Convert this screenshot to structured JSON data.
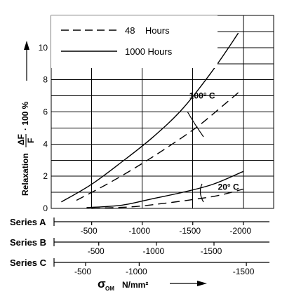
{
  "chart_data": {
    "type": "line",
    "ylabel": "Relaxation",
    "ylabel_formula": {
      "numerator": "ΔF",
      "denominator": "F",
      "suffix": "· 100 %"
    },
    "xlabel": {
      "symbol": "σ",
      "subscript": "OM",
      "unit": "N/mm²"
    },
    "ylim": [
      0,
      12
    ],
    "yticks": [
      0,
      2,
      4,
      6,
      8,
      10
    ],
    "ytick_labels": [
      "0",
      "2",
      "4",
      "6",
      "8",
      "10"
    ],
    "x_primary": "Series A",
    "xlim_series_a": [
      -100,
      -2300
    ],
    "grid": true,
    "legend_position": "top-left",
    "legend": [
      {
        "label": "48    Hours",
        "style": "dashed"
      },
      {
        "label": "1000 Hours",
        "style": "solid"
      }
    ],
    "annotations": [
      {
        "text": "100° C",
        "x": -1500,
        "y": 7.0
      },
      {
        "text": "20° C",
        "x": -1700,
        "y": 1.25
      }
    ],
    "secondary_axes": [
      {
        "name": "Series A",
        "ticks": [
          {
            "value": -500,
            "series_a": -500
          },
          {
            "value": -1000,
            "series_a": -1000
          },
          {
            "value": -1500,
            "series_a": -1500
          },
          {
            "value": -2000,
            "series_a": -2000
          }
        ]
      },
      {
        "name": "Series B",
        "ticks": [
          {
            "value": -500,
            "series_a": -570
          },
          {
            "value": -1000,
            "series_a": -1140
          },
          {
            "value": -1500,
            "series_a": -1710
          }
        ]
      },
      {
        "name": "Series C",
        "ticks": [
          {
            "value": -500,
            "series_a": -440
          },
          {
            "value": -1000,
            "series_a": -970
          },
          {
            "value": -1500,
            "series_a": -2030
          }
        ]
      }
    ],
    "series": [
      {
        "temperature": "100° C",
        "duration": "1000 Hours",
        "style": "solid",
        "x": [
          -200,
          -500,
          -800,
          -1100,
          -1400,
          -1700,
          -1950
        ],
        "y": [
          0.4,
          1.5,
          2.9,
          4.4,
          6.2,
          8.6,
          10.9
        ]
      },
      {
        "temperature": "100° C",
        "duration": "48 Hours",
        "style": "dashed",
        "x": [
          -350,
          -650,
          -950,
          -1250,
          -1550,
          -1800,
          -1950
        ],
        "y": [
          0.5,
          1.5,
          2.6,
          3.8,
          5.1,
          6.4,
          7.2
        ]
      },
      {
        "temperature": "20° C",
        "duration": "1000 Hours",
        "style": "solid",
        "x": [
          -450,
          -800,
          -1100,
          -1400,
          -1700,
          -2000
        ],
        "y": [
          0.05,
          0.2,
          0.6,
          1.0,
          1.5,
          2.3
        ]
      },
      {
        "temperature": "20° C",
        "duration": "48 Hours",
        "style": "dashed",
        "x": [
          -500,
          -900,
          -1200,
          -1500,
          -1750,
          -2000
        ],
        "y": [
          0.0,
          0.1,
          0.3,
          0.55,
          0.8,
          1.2
        ]
      }
    ]
  }
}
